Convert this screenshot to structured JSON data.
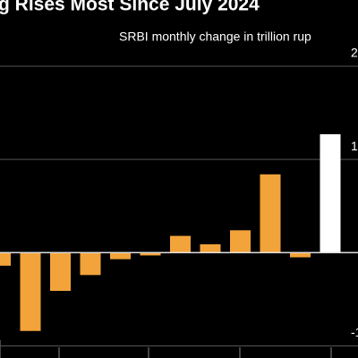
{
  "chart_data": {
    "type": "bar",
    "title": "g Rises Most Since July 2024",
    "subtitle": "SRBI monthly change in trillion rup",
    "categories": [
      null,
      null,
      null,
      null,
      null,
      null,
      null,
      null,
      null,
      null,
      null,
      null
    ],
    "values": [
      -0.14,
      -0.84,
      -0.41,
      -0.24,
      -0.07,
      -0.03,
      0.18,
      0.09,
      0.24,
      0.84,
      -0.05,
      1.27
    ],
    "colors": [
      "#f2a33a",
      "#f2a33a",
      "#f2a33a",
      "#f2a33a",
      "#f2a33a",
      "#f2a33a",
      "#f2a33a",
      "#f2a33a",
      "#f2a33a",
      "#f2a33a",
      "#f2a33a",
      "#ffffff"
    ],
    "ylim": [
      -1.13,
      2.71
    ],
    "yticks": [
      -1,
      1,
      2
    ],
    "grid": true
  }
}
